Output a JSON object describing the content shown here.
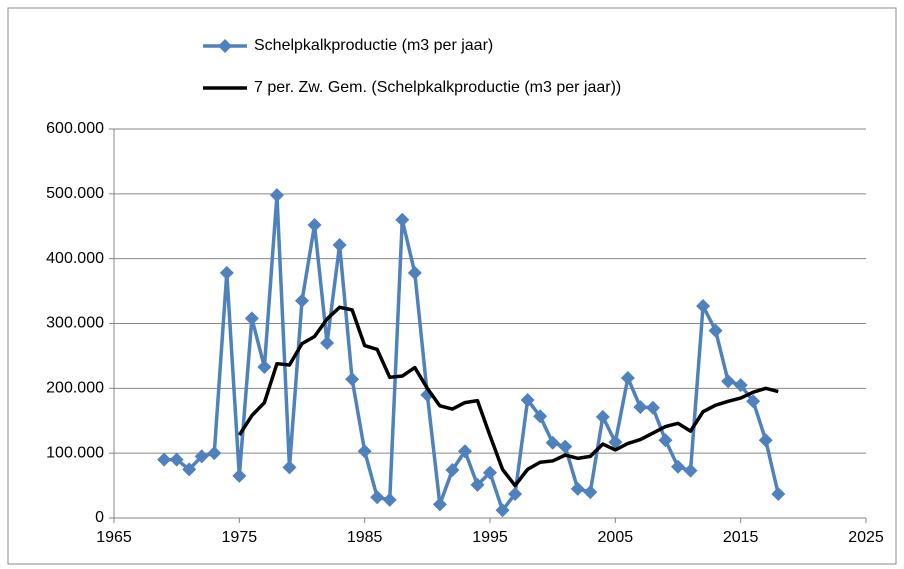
{
  "chart_data": {
    "type": "line",
    "x": [
      1969,
      1970,
      1971,
      1972,
      1973,
      1974,
      1975,
      1976,
      1977,
      1978,
      1979,
      1980,
      1981,
      1982,
      1983,
      1984,
      1985,
      1986,
      1987,
      1988,
      1989,
      1990,
      1991,
      1992,
      1993,
      1994,
      1995,
      1996,
      1997,
      1998,
      1999,
      2000,
      2001,
      2002,
      2003,
      2004,
      2005,
      2006,
      2007,
      2008,
      2009,
      2010,
      2011,
      2012,
      2013,
      2014,
      2015,
      2016,
      2017,
      2018
    ],
    "series": [
      {
        "name": "Schelpkalkproductie (m3 per jaar)",
        "color": "#4f81bd",
        "marker": "diamond",
        "values": [
          90000,
          90000,
          75000,
          95000,
          100000,
          378000,
          65000,
          308000,
          233000,
          498000,
          78000,
          335000,
          452000,
          270000,
          421000,
          214000,
          103000,
          32000,
          28000,
          460000,
          378000,
          190000,
          21000,
          74000,
          103000,
          51000,
          70000,
          12000,
          37000,
          182000,
          157000,
          116000,
          110000,
          45000,
          40000,
          156000,
          117000,
          216000,
          171000,
          170000,
          120000,
          79000,
          73000,
          327000,
          289000,
          211000,
          205000,
          180000,
          120000,
          37000
        ]
      },
      {
        "name": "7 per. Zw. Gem. (Schelpkalkproductie (m3 per jaar))",
        "color": "#000000",
        "marker": "none",
        "values": [
          null,
          null,
          null,
          null,
          null,
          null,
          128000,
          158000,
          178000,
          238000,
          236000,
          269000,
          280000,
          307000,
          325000,
          321000,
          266000,
          260000,
          217000,
          219000,
          232000,
          200000,
          173000,
          168000,
          178000,
          181000,
          127000,
          75000,
          50000,
          75000,
          86000,
          88000,
          97000,
          92000,
          95000,
          114000,
          105000,
          115000,
          121000,
          131000,
          141000,
          146000,
          134000,
          164000,
          174000,
          180000,
          185000,
          194000,
          200000,
          195000
        ]
      }
    ],
    "xlim": [
      1965,
      2025
    ],
    "xticks": [
      1965,
      1975,
      1985,
      1995,
      2005,
      2015,
      2025
    ],
    "ylim": [
      0,
      600000
    ],
    "yticks": [
      0,
      {
        "value": 100000,
        "label": "100.000"
      },
      {
        "value": 200000,
        "label": "200.000"
      },
      {
        "value": 300000,
        "label": "300.000"
      },
      {
        "value": 400000,
        "label": "400.000"
      },
      {
        "value": 500000,
        "label": "500.000"
      },
      {
        "value": 600000,
        "label": "600.000"
      }
    ],
    "grid": true,
    "legend": "top"
  }
}
